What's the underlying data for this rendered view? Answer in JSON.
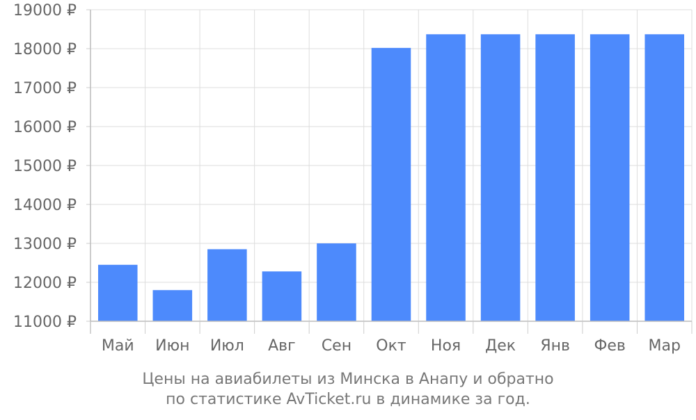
{
  "chart_data": {
    "type": "bar",
    "categories": [
      "Май",
      "Июн",
      "Июл",
      "Авг",
      "Сен",
      "Окт",
      "Ноя",
      "Дек",
      "Янв",
      "Фев",
      "Мар"
    ],
    "values": [
      12450,
      11800,
      12850,
      12280,
      13000,
      18020,
      18370,
      18370,
      18370,
      18370,
      18370
    ],
    "y_ticks": [
      "19000 ₽",
      "18000 ₽",
      "17000 ₽",
      "16000 ₽",
      "15000 ₽",
      "14000 ₽",
      "13000 ₽",
      "12000 ₽",
      "11000 ₽"
    ],
    "y_tick_values": [
      19000,
      18000,
      17000,
      16000,
      15000,
      14000,
      13000,
      12000,
      11000
    ],
    "ylim": [
      11000,
      19000
    ],
    "grid": true,
    "legend": "none",
    "bar_color": "#4d8afc",
    "title_line1": "Цены на авиабилеты из Минска в Анапу и обратно",
    "title_line2": "по статистике AvTicket.ru в динамике за год."
  }
}
